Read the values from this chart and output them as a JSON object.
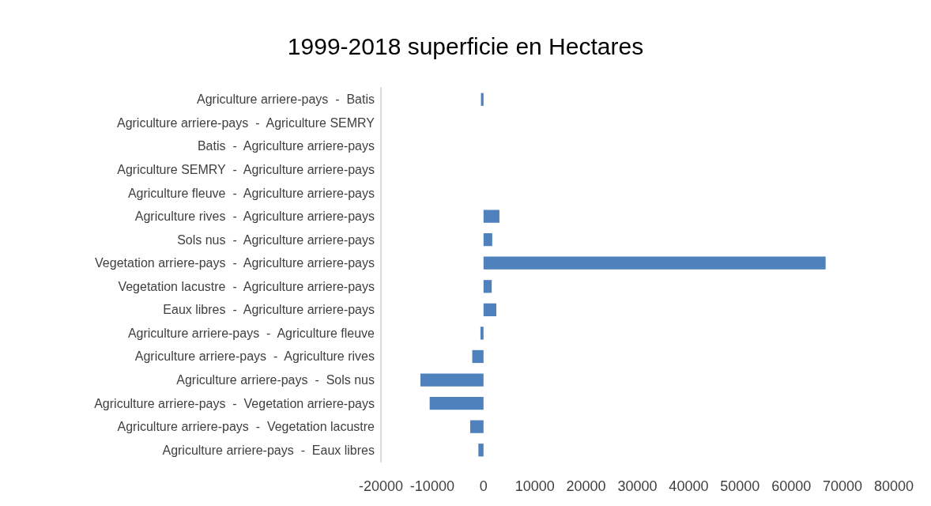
{
  "chart_data": {
    "type": "bar",
    "orientation": "horizontal",
    "title": "1999-2018 superficie en Hectares",
    "categories": [
      "Agriculture arriere-pays  -  Batis",
      "Agriculture arriere-pays  -  Agriculture SEMRY",
      "Batis  -  Agriculture arriere-pays",
      "Agriculture SEMRY  -  Agriculture arriere-pays",
      "Agriculture fleuve  -  Agriculture arriere-pays",
      "Agriculture rives  -  Agriculture arriere-pays",
      "Sols nus  -  Agriculture arriere-pays",
      "Vegetation arriere-pays  -  Agriculture arriere-pays",
      "Vegetation lacustre  -  Agriculture arriere-pays",
      "Eaux libres  -  Agriculture arriere-pays",
      "Agriculture arriere-pays  -  Agriculture fleuve",
      "Agriculture arriere-pays  -  Agriculture rives",
      "Agriculture arriere-pays  -  Sols nus",
      "Agriculture arriere-pays  -  Vegetation arriere-pays",
      "Agriculture arriere-pays  -  Vegetation lacustre",
      "Agriculture arriere-pays  -  Eaux libres"
    ],
    "values": [
      -500,
      0,
      0,
      0,
      0,
      3100,
      1700,
      66700,
      1600,
      2500,
      -600,
      -2200,
      -12300,
      -10500,
      -2600,
      -1000
    ],
    "color": "#4f81bd",
    "xlim": [
      -20000,
      80000
    ],
    "xticks": [
      -20000,
      -10000,
      0,
      10000,
      20000,
      30000,
      40000,
      50000,
      60000,
      70000,
      80000
    ],
    "grid": false
  }
}
